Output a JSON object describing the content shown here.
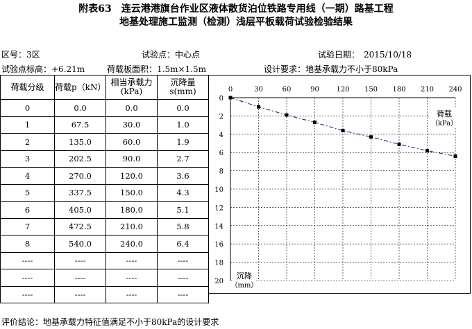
{
  "header": {
    "title_line1": "附表63　连云港港旗台作业区液体散货泊位铁路专用线（一期）路基工程",
    "title_line2": "地基处理施工监测（检测）浅层平板载荷试验检验结果"
  },
  "meta": {
    "zone": "区号：3区",
    "test_point": "试验点：中心点",
    "test_date": "试验日期：　2015/10/18",
    "elevation": "试验点标高：+6.21m",
    "plate_area": "荷载板面积：1.5m×1.5m",
    "design_req": "设计要求：地基承载力不小于80kPa"
  },
  "table": {
    "headers": [
      "荷载分级",
      "荷载p（kN）",
      "相当承载力(kPa)",
      "沉降量s(mm)"
    ],
    "rows": [
      [
        "0",
        "0.0",
        "0.0",
        "0.0"
      ],
      [
        "1",
        "67.5",
        "30.0",
        "1.0"
      ],
      [
        "2",
        "135.0",
        "60.0",
        "1.9"
      ],
      [
        "3",
        "202.5",
        "90.0",
        "2.7"
      ],
      [
        "4",
        "270.0",
        "120.0",
        "3.6"
      ],
      [
        "5",
        "337.5",
        "150.0",
        "4.3"
      ],
      [
        "6",
        "405.0",
        "180.0",
        "5.1"
      ],
      [
        "7",
        "472.5",
        "210.0",
        "5.8"
      ],
      [
        "8",
        "540.0",
        "240.0",
        "6.4"
      ],
      [
        "----",
        "----",
        "----",
        "----"
      ],
      [
        "----",
        "----",
        "----",
        "----"
      ],
      [
        "----",
        "----",
        "----",
        "----"
      ]
    ]
  },
  "chart_data": {
    "type": "line",
    "x": [
      0,
      30,
      60,
      90,
      120,
      150,
      180,
      210,
      240
    ],
    "y": [
      0.0,
      1.0,
      1.9,
      2.7,
      3.6,
      4.3,
      5.1,
      5.8,
      6.4
    ],
    "xlabel": "荷载（kPa）",
    "ylabel": "沉降（mm）",
    "xlim": [
      0,
      240
    ],
    "ylim": [
      0,
      20
    ],
    "x_ticks": [
      0,
      30,
      60,
      90,
      120,
      150,
      180,
      210,
      240
    ],
    "y_ticks": [
      0,
      2,
      4,
      6,
      8,
      10,
      12,
      14,
      16,
      18,
      20
    ],
    "y_inverted": true,
    "x_axis_position": "top",
    "grid": true,
    "series_color": "#1f1f7a"
  },
  "footer": {
    "conclusion": "评价结论：地基承载力特征值满足不小于80kPa的设计要求"
  }
}
